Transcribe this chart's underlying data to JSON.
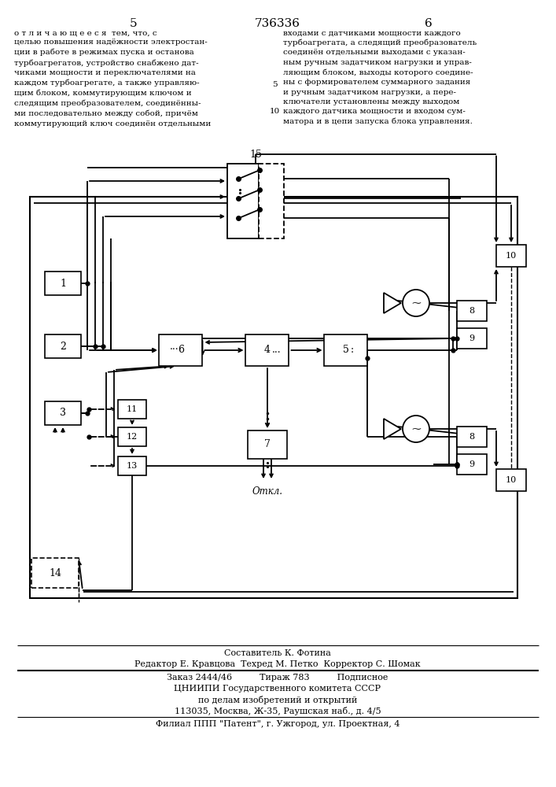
{
  "bg_color": "#ffffff",
  "line_color": "#000000",
  "header_title": "736336",
  "header_left_num": "5",
  "header_right_num": "6",
  "text_left": "о т л и ч а ю щ е е с я  тем, что, с\nцелью повышения надёжности электростан-\nции в работе в режимах пуска и останова\nтурбоагрегатов, устройство снабжено дат-\nчиками мощности и переключателями на\nкаждом турбоагрегате, а также управляю-\nщим блоком, коммутирующим ключом и\nследящим преобразователем, соединённы-\nми последовательно между собой, причём\nкоммутирующий ключ соединён отдельными",
  "text_right": "входами с датчиками мощности каждого\nтурбоагрегата, а следящий преобразователь\nсоединён отдельными выходами с указан-\nным ручным задатчиком нагрузки и управ-\nляющим блоком, выходы которого соедине-\nны с формирователем суммарного задания\nи ручным задатчиком нагрузки, а пере-\nключатели установлены между выходом\nкаждого датчика мощности и входом сум-\nматора и в цепи запуска блока управления.",
  "line_num_5": "5",
  "line_num_10": "10",
  "otkluchenie_label": "Откл.",
  "block_15_label": "15",
  "footer_composer": "Составитель К. Фотина",
  "footer_editor": "Редактор Е. Кравцова  Техред М. Петко  Корректор С. Шомак",
  "footer_order": "Заказ 2444/46          Тираж 783          Подписное",
  "footer_org1": "ЦНИИПИ Государственного комитета СССР",
  "footer_org2": "по делам изобретений и открытий",
  "footer_address": "113035, Москва, Ж-35, Раушская наб., д. 4/5",
  "footer_branch": "Филиал ППП \"Патент\", г. Ужгород, ул. Проектная, 4"
}
